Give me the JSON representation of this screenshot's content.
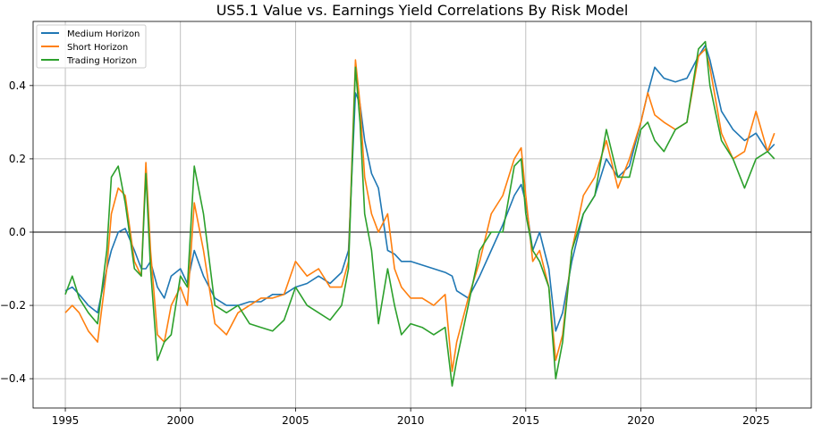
{
  "chart_data": {
    "type": "line",
    "title": "US5.1 Value vs. Earnings Yield Correlations By Risk Model",
    "xlabel": "",
    "ylabel": "",
    "xlim": [
      1993.6,
      2027.4
    ],
    "ylim": [
      -0.48,
      0.575
    ],
    "x_ticks": [
      1995,
      2000,
      2005,
      2010,
      2015,
      2020,
      2025
    ],
    "x_tick_labels": [
      "1995",
      "2000",
      "2005",
      "2010",
      "2015",
      "2020",
      "2025"
    ],
    "y_ticks": [
      -0.4,
      -0.2,
      0.0,
      0.2,
      0.4
    ],
    "y_tick_labels": [
      "−0.4",
      "−0.2",
      "0.0",
      "0.2",
      "0.4"
    ],
    "grid": true,
    "zero_line": 0.0,
    "legend_position": "top-left",
    "series": [
      {
        "name": "Medium Horizon",
        "color": "#1f77b4",
        "x": [
          1995.0,
          1995.3,
          1995.6,
          1996.0,
          1996.4,
          1996.8,
          1997.0,
          1997.3,
          1997.6,
          1998.0,
          1998.3,
          1998.5,
          1998.7,
          1999.0,
          1999.3,
          1999.6,
          2000.0,
          2000.3,
          2000.6,
          2001.0,
          2001.5,
          2002.0,
          2002.5,
          2003.0,
          2003.5,
          2004.0,
          2004.5,
          2005.0,
          2005.5,
          2006.0,
          2006.5,
          2007.0,
          2007.3,
          2007.6,
          2007.8,
          2008.0,
          2008.3,
          2008.6,
          2009.0,
          2009.3,
          2009.6,
          2010.0,
          2010.5,
          2011.0,
          2011.5,
          2011.8,
          2012.0,
          2012.5,
          2013.0,
          2013.5,
          2014.0,
          2014.5,
          2014.8,
          2015.0,
          2015.3,
          2015.6,
          2016.0,
          2016.3,
          2016.6,
          2017.0,
          2017.5,
          2018.0,
          2018.5,
          2019.0,
          2019.5,
          2020.0,
          2020.3,
          2020.6,
          2021.0,
          2021.5,
          2022.0,
          2022.5,
          2022.8,
          2023.0,
          2023.5,
          2024.0,
          2024.5,
          2025.0,
          2025.5,
          2025.8
        ],
        "values": [
          -0.16,
          -0.15,
          -0.17,
          -0.2,
          -0.22,
          -0.1,
          -0.05,
          0.0,
          0.01,
          -0.05,
          -0.1,
          -0.1,
          -0.08,
          -0.15,
          -0.18,
          -0.12,
          -0.1,
          -0.14,
          -0.05,
          -0.12,
          -0.18,
          -0.2,
          -0.2,
          -0.19,
          -0.19,
          -0.17,
          -0.17,
          -0.15,
          -0.14,
          -0.12,
          -0.14,
          -0.11,
          -0.05,
          0.38,
          0.35,
          0.25,
          0.16,
          0.12,
          -0.05,
          -0.06,
          -0.08,
          -0.08,
          -0.09,
          -0.1,
          -0.11,
          -0.12,
          -0.16,
          -0.18,
          -0.12,
          -0.05,
          0.02,
          0.1,
          0.13,
          0.08,
          -0.05,
          0.0,
          -0.1,
          -0.27,
          -0.22,
          -0.08,
          0.05,
          0.1,
          0.2,
          0.15,
          0.18,
          0.3,
          0.38,
          0.45,
          0.42,
          0.41,
          0.42,
          0.48,
          0.51,
          0.47,
          0.33,
          0.28,
          0.25,
          0.27,
          0.22,
          0.24
        ]
      },
      {
        "name": "Short Horizon",
        "color": "#ff7f0e",
        "x": [
          1995.0,
          1995.3,
          1995.6,
          1996.0,
          1996.4,
          1996.8,
          1997.0,
          1997.3,
          1997.6,
          1998.0,
          1998.3,
          1998.5,
          1998.7,
          1999.0,
          1999.3,
          1999.6,
          2000.0,
          2000.3,
          2000.6,
          2001.0,
          2001.5,
          2002.0,
          2002.5,
          2003.0,
          2003.5,
          2004.0,
          2004.5,
          2005.0,
          2005.5,
          2006.0,
          2006.5,
          2007.0,
          2007.3,
          2007.6,
          2007.8,
          2008.0,
          2008.3,
          2008.6,
          2009.0,
          2009.3,
          2009.6,
          2010.0,
          2010.5,
          2011.0,
          2011.5,
          2011.8,
          2012.0,
          2012.5,
          2013.0,
          2013.5,
          2014.0,
          2014.5,
          2014.8,
          2015.0,
          2015.3,
          2015.6,
          2016.0,
          2016.3,
          2016.6,
          2017.0,
          2017.5,
          2018.0,
          2018.5,
          2019.0,
          2019.5,
          2020.0,
          2020.3,
          2020.6,
          2021.0,
          2021.5,
          2022.0,
          2022.5,
          2022.8,
          2023.0,
          2023.5,
          2024.0,
          2024.5,
          2025.0,
          2025.5,
          2025.8
        ],
        "values": [
          -0.22,
          -0.2,
          -0.22,
          -0.27,
          -0.3,
          -0.1,
          0.05,
          0.12,
          0.1,
          -0.08,
          -0.12,
          0.19,
          -0.05,
          -0.28,
          -0.3,
          -0.2,
          -0.15,
          -0.2,
          0.08,
          -0.05,
          -0.25,
          -0.28,
          -0.22,
          -0.2,
          -0.18,
          -0.18,
          -0.17,
          -0.08,
          -0.12,
          -0.1,
          -0.15,
          -0.15,
          -0.08,
          0.47,
          0.35,
          0.15,
          0.05,
          0.0,
          0.05,
          -0.1,
          -0.15,
          -0.18,
          -0.18,
          -0.2,
          -0.17,
          -0.38,
          -0.3,
          -0.18,
          -0.08,
          0.05,
          0.1,
          0.2,
          0.23,
          0.1,
          -0.08,
          -0.05,
          -0.15,
          -0.35,
          -0.28,
          -0.05,
          0.1,
          0.15,
          0.25,
          0.12,
          0.2,
          0.3,
          0.38,
          0.32,
          0.3,
          0.28,
          0.3,
          0.48,
          0.5,
          0.45,
          0.27,
          0.2,
          0.22,
          0.33,
          0.22,
          0.27
        ]
      },
      {
        "name": "Trading Horizon",
        "color": "#2ca02c",
        "x": [
          1995.0,
          1995.3,
          1995.6,
          1996.0,
          1996.4,
          1996.8,
          1997.0,
          1997.3,
          1997.6,
          1998.0,
          1998.3,
          1998.5,
          1998.7,
          1999.0,
          1999.3,
          1999.6,
          2000.0,
          2000.3,
          2000.6,
          2001.0,
          2001.5,
          2002.0,
          2002.5,
          2003.0,
          2003.5,
          2004.0,
          2004.5,
          2005.0,
          2005.5,
          2006.0,
          2006.5,
          2007.0,
          2007.3,
          2007.6,
          2007.8,
          2008.0,
          2008.3,
          2008.6,
          2009.0,
          2009.3,
          2009.6,
          2010.0,
          2010.5,
          2011.0,
          2011.5,
          2011.8,
          2012.0,
          2012.5,
          2013.0,
          2013.5,
          2014.0,
          2014.5,
          2014.8,
          2015.0,
          2015.3,
          2015.6,
          2016.0,
          2016.3,
          2016.6,
          2017.0,
          2017.5,
          2018.0,
          2018.5,
          2019.0,
          2019.5,
          2020.0,
          2020.3,
          2020.6,
          2021.0,
          2021.5,
          2022.0,
          2022.5,
          2022.8,
          2023.0,
          2023.5,
          2024.0,
          2024.5,
          2025.0,
          2025.5,
          2025.8
        ],
        "values": [
          -0.17,
          -0.12,
          -0.18,
          -0.22,
          -0.25,
          -0.05,
          0.15,
          0.18,
          0.08,
          -0.1,
          -0.12,
          0.16,
          -0.1,
          -0.35,
          -0.3,
          -0.28,
          -0.12,
          -0.15,
          0.18,
          0.05,
          -0.2,
          -0.22,
          -0.2,
          -0.25,
          -0.26,
          -0.27,
          -0.24,
          -0.15,
          -0.2,
          -0.22,
          -0.24,
          -0.2,
          -0.1,
          0.45,
          0.3,
          0.05,
          -0.05,
          -0.25,
          -0.1,
          -0.2,
          -0.28,
          -0.25,
          -0.26,
          -0.28,
          -0.26,
          -0.42,
          -0.35,
          -0.2,
          -0.05,
          0.0,
          0.0,
          0.18,
          0.2,
          0.05,
          -0.05,
          -0.08,
          -0.15,
          -0.4,
          -0.3,
          -0.05,
          0.05,
          0.1,
          0.28,
          0.15,
          0.15,
          0.28,
          0.3,
          0.25,
          0.22,
          0.28,
          0.3,
          0.5,
          0.52,
          0.4,
          0.25,
          0.2,
          0.12,
          0.2,
          0.22,
          0.2
        ]
      }
    ]
  }
}
